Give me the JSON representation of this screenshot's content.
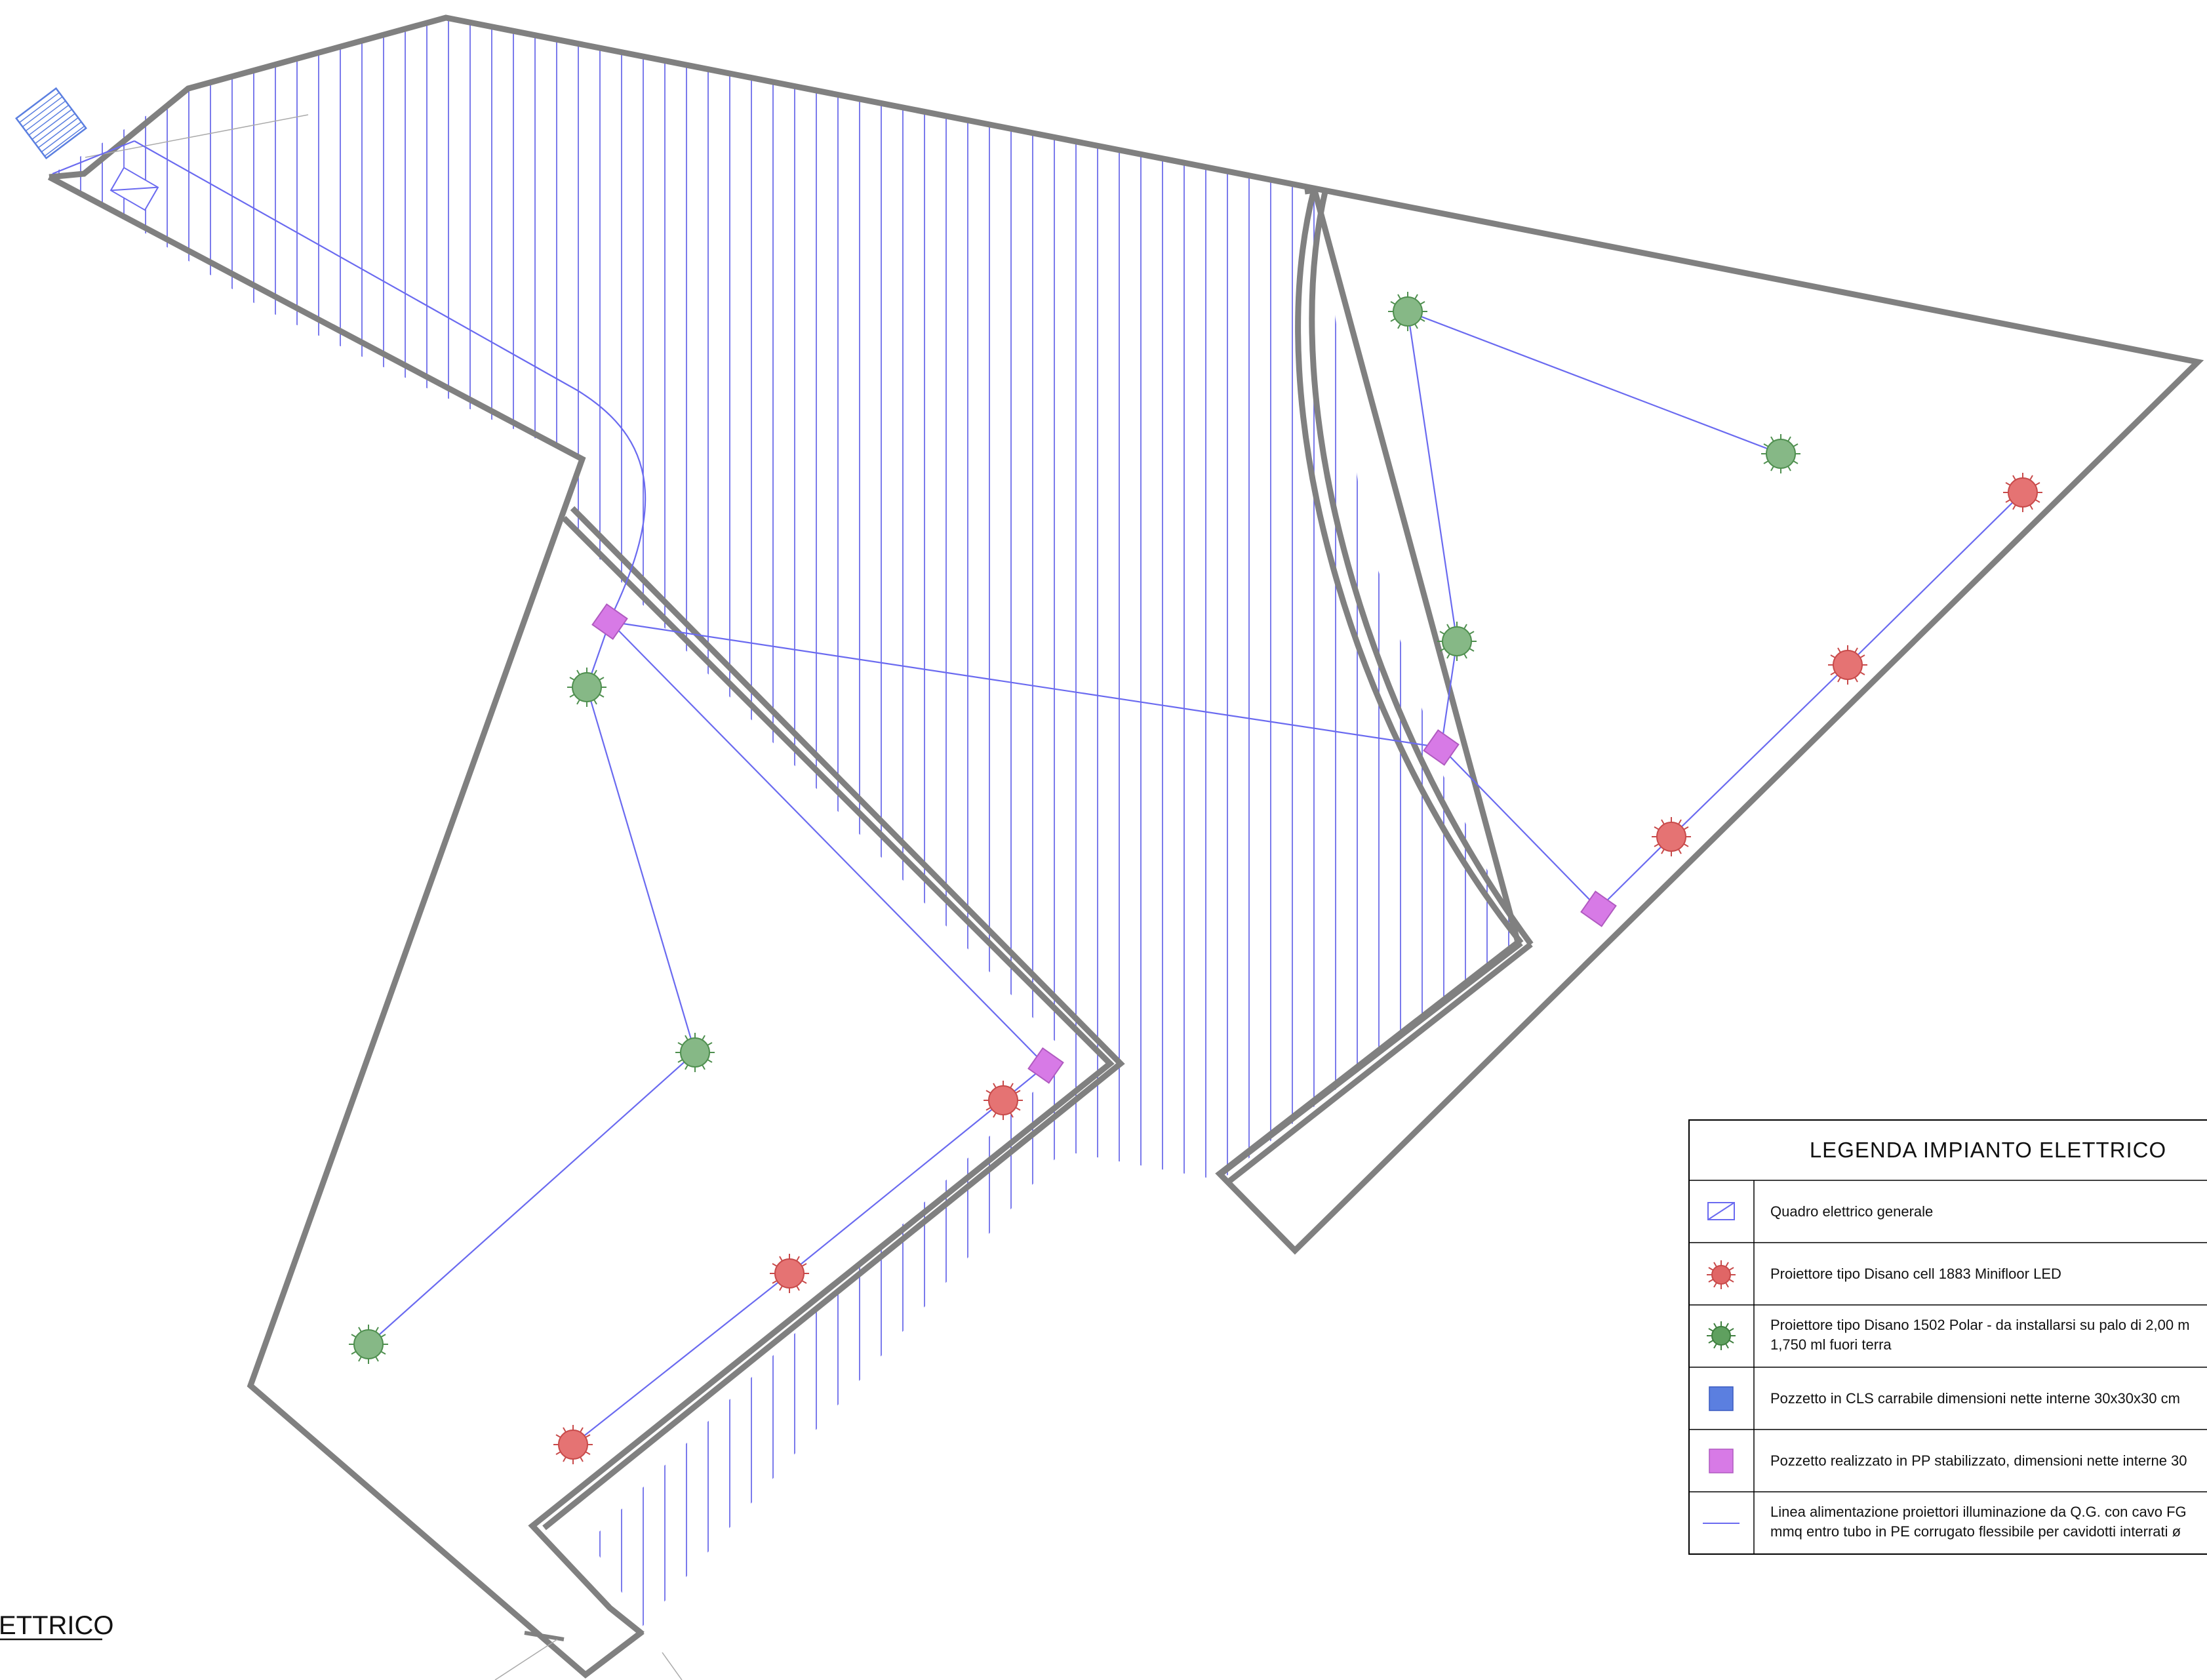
{
  "legend": {
    "title": "LEGENDA IMPIANTO ELETTRICO",
    "items": [
      {
        "symbol": "quadro-icon",
        "text": [
          "Quadro elettrico generale"
        ]
      },
      {
        "symbol": "red-projector-icon",
        "color": "#e06666",
        "text": [
          "Proiettore tipo Disano cell 1883 Minifloor LED"
        ]
      },
      {
        "symbol": "green-projector-icon",
        "color": "#6aa36a",
        "text": [
          "Proiettore tipo Disano 1502 Polar - da installarsi su palo di 2,00 m",
          "1,750 ml fuori terra"
        ]
      },
      {
        "symbol": "blue-pit-icon",
        "color": "#5b7fe0",
        "text": [
          "Pozzetto in CLS carrabile dimensioni nette interne 30x30x30 cm"
        ]
      },
      {
        "symbol": "pink-pit-icon",
        "color": "#d77ae6",
        "text": [
          "Pozzetto realizzato in PP stabilizzato, dimensioni nette interne 30"
        ]
      },
      {
        "symbol": "cable-line-icon",
        "color": "#6a6af0",
        "text": [
          "Linea alimentazione proiettori illuminazione da Q.G. con cavo FG",
          "mmq entro tubo in PE corrugato flessibile per cavidotti interrati ø"
        ]
      }
    ]
  },
  "caption": "ETTRICO",
  "colors": {
    "wall": "#808080",
    "cable": "#6a6af0",
    "hatch": "#5a5ae8",
    "red_projector": "#e06666",
    "green_projector": "#7bb37b",
    "pink_pit": "#d77ae6",
    "blue_pit": "#5b7fe0"
  }
}
